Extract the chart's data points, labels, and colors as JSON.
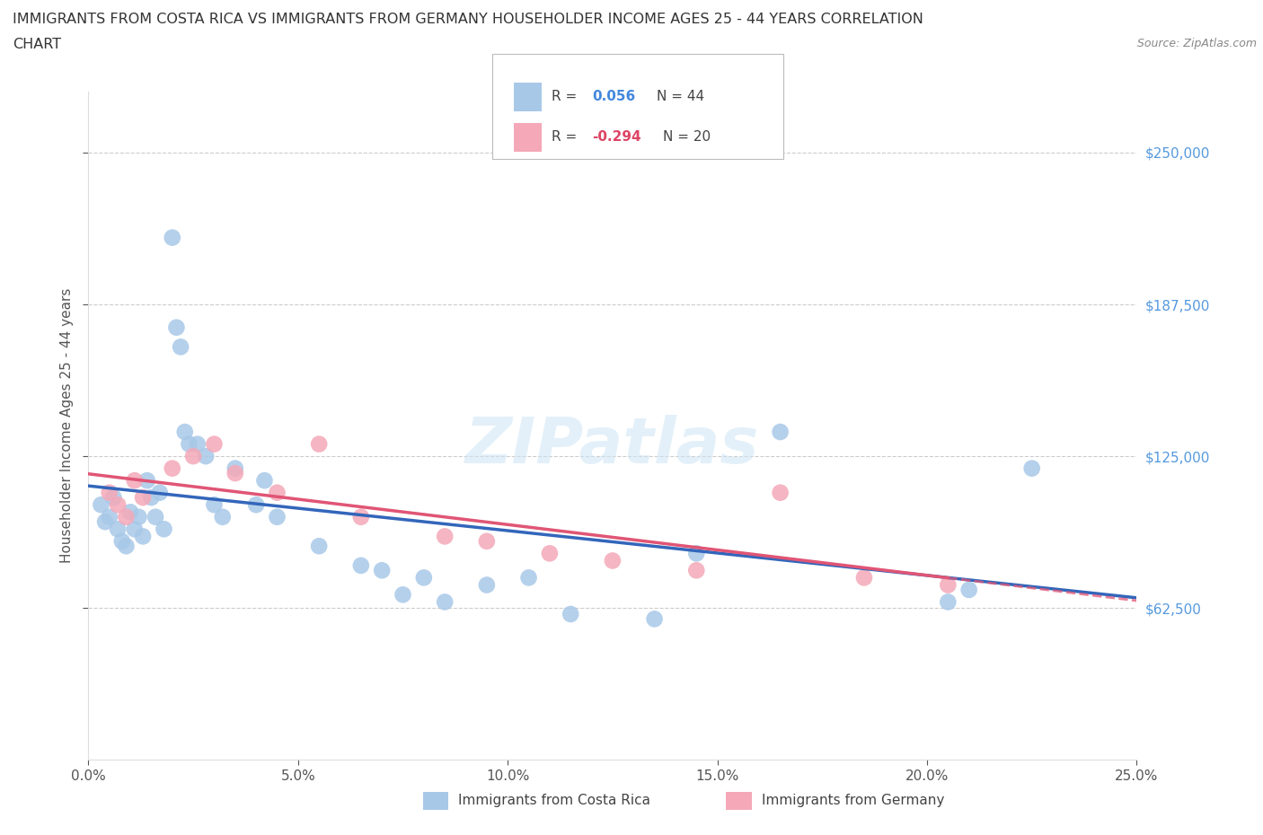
{
  "title_line1": "IMMIGRANTS FROM COSTA RICA VS IMMIGRANTS FROM GERMANY HOUSEHOLDER INCOME AGES 25 - 44 YEARS CORRELATION",
  "title_line2": "CHART",
  "source_text": "Source: ZipAtlas.com",
  "ylabel": "Householder Income Ages 25 - 44 years",
  "ytick_labels": [
    "$62,500",
    "$125,000",
    "$187,500",
    "$250,000"
  ],
  "ytick_values": [
    62500,
    125000,
    187500,
    250000
  ],
  "xlim": [
    0,
    25.0
  ],
  "ylim": [
    0,
    275000
  ],
  "legend_r_cr": "0.056",
  "legend_n_cr": "44",
  "legend_r_ger": "-0.294",
  "legend_n_ger": "20",
  "costa_rica_color": "#a8c8e8",
  "costa_rica_line_color": "#3366bb",
  "germany_color": "#f4a8b8",
  "germany_line_color": "#e05575",
  "watermark": "ZIPatlas",
  "cr_x": [
    0.3,
    0.4,
    0.5,
    0.6,
    0.7,
    0.8,
    0.9,
    1.0,
    1.1,
    1.2,
    1.3,
    1.4,
    1.5,
    1.6,
    1.7,
    1.8,
    2.0,
    2.1,
    2.2,
    2.3,
    2.4,
    2.6,
    2.8,
    3.0,
    3.2,
    3.5,
    4.0,
    4.2,
    4.5,
    5.5,
    6.5,
    7.0,
    7.5,
    8.0,
    8.5,
    9.5,
    10.5,
    11.5,
    13.5,
    14.5,
    16.5,
    20.5,
    21.0,
    22.5
  ],
  "cr_y": [
    105000,
    98000,
    100000,
    108000,
    95000,
    90000,
    88000,
    102000,
    95000,
    100000,
    92000,
    115000,
    108000,
    100000,
    110000,
    95000,
    215000,
    178000,
    170000,
    135000,
    130000,
    130000,
    125000,
    105000,
    100000,
    120000,
    105000,
    115000,
    100000,
    88000,
    80000,
    78000,
    68000,
    75000,
    65000,
    72000,
    75000,
    60000,
    58000,
    85000,
    135000,
    65000,
    70000,
    120000
  ],
  "ger_x": [
    0.5,
    0.7,
    0.9,
    1.1,
    1.3,
    2.0,
    2.5,
    3.0,
    3.5,
    4.5,
    5.5,
    6.5,
    8.5,
    9.5,
    11.0,
    12.5,
    14.5,
    16.5,
    18.5,
    20.5
  ],
  "ger_y": [
    110000,
    105000,
    100000,
    115000,
    108000,
    120000,
    125000,
    130000,
    118000,
    110000,
    130000,
    100000,
    92000,
    90000,
    85000,
    82000,
    78000,
    110000,
    75000,
    72000
  ]
}
